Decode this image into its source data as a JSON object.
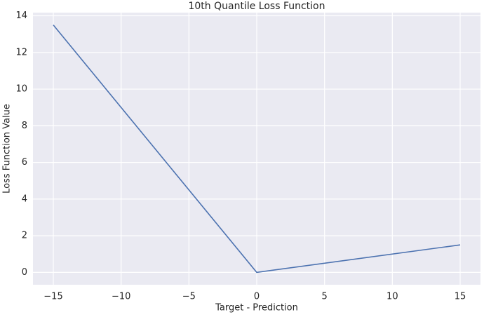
{
  "chart_data": {
    "type": "line",
    "title": "10th Quantile Loss Function",
    "x_label": "Target - Prediction",
    "y_label": "Loss Function Value",
    "x": [
      -15,
      0,
      15
    ],
    "series": [
      {
        "color": "#4c72b0",
        "values": [
          13.5,
          0,
          1.5
        ]
      }
    ],
    "xlim": [
      -16.5,
      16.5
    ],
    "xticks": [
      {
        "value": -15,
        "label": "−15"
      },
      {
        "value": -10,
        "label": "−10"
      },
      {
        "value": -5,
        "label": "−5"
      },
      0,
      5,
      10,
      15
    ],
    "ylim": [
      -0.675,
      14.175
    ],
    "yticks": [
      0,
      2,
      4,
      6,
      8,
      10,
      12,
      14
    ],
    "grid": true,
    "background": "#eaeaf2"
  }
}
